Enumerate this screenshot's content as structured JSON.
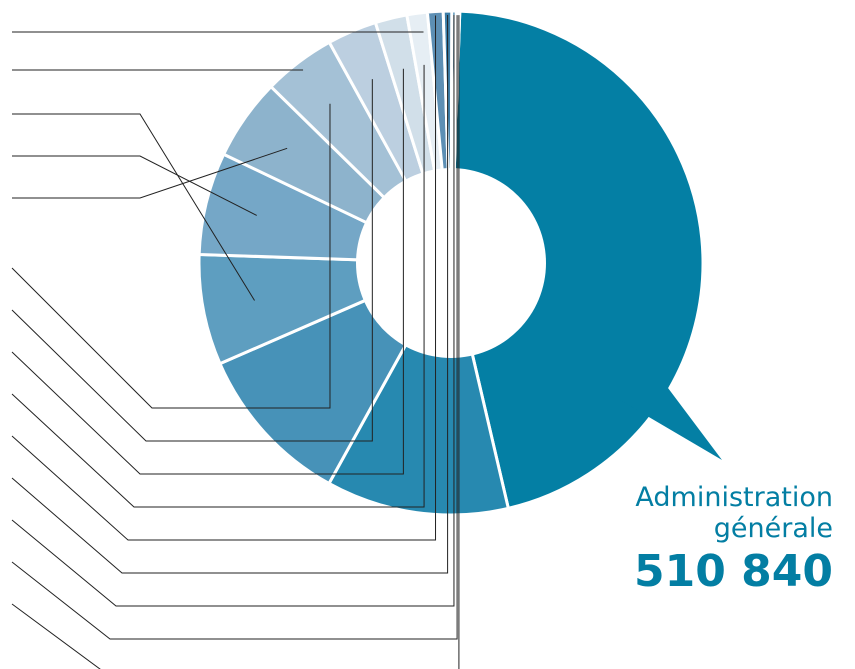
{
  "chart_data": {
    "type": "pie",
    "style": "donut with speech-bubble tail, unlabeled leader lines",
    "legend": "none",
    "highlight": {
      "name_line1": "Administration",
      "name_line2": "générale",
      "value": "510 840",
      "color": "#037ea3"
    },
    "slices": [
      {
        "value": 510840,
        "color": "#047fa4"
      },
      {
        "value": 130500,
        "color": "#2789b0"
      },
      {
        "value": 116200,
        "color": "#4792b8"
      },
      {
        "value": 79000,
        "color": "#5e9ec0"
      },
      {
        "value": 73200,
        "color": "#75a7c7"
      },
      {
        "value": 58400,
        "color": "#8db3cc"
      },
      {
        "value": 51800,
        "color": "#a4c1d6"
      },
      {
        "value": 35400,
        "color": "#bccfe0"
      },
      {
        "value": 22800,
        "color": "#d1dfe9"
      },
      {
        "value": 14600,
        "color": "#e6eef4"
      },
      {
        "value": 11200,
        "color": "#5d8fb4"
      },
      {
        "value": 6100,
        "color": "#3c7ea8"
      },
      {
        "value": 3000,
        "color": "#2c76a4"
      },
      {
        "value": 1500,
        "color": "#1f6e9e"
      },
      {
        "value": 1100,
        "color": "#17689a"
      }
    ]
  }
}
